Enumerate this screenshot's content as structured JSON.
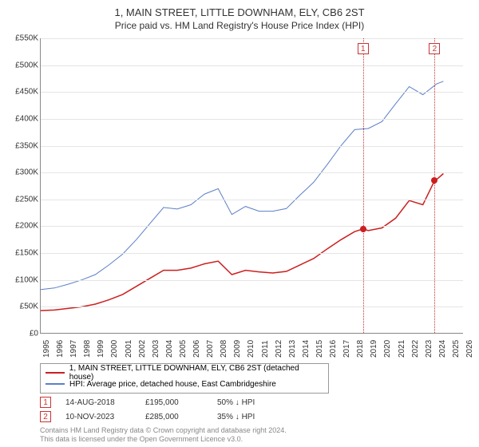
{
  "title": "1, MAIN STREET, LITTLE DOWNHAM, ELY, CB6 2ST",
  "subtitle": "Price paid vs. HM Land Registry's House Price Index (HPI)",
  "chart": {
    "type": "line",
    "ylim": [
      0,
      550
    ],
    "yticks": [
      0,
      50,
      100,
      150,
      200,
      250,
      300,
      350,
      400,
      450,
      500,
      550
    ],
    "ytick_labels": [
      "£0",
      "£50K",
      "£100K",
      "£150K",
      "£200K",
      "£250K",
      "£300K",
      "£350K",
      "£400K",
      "£450K",
      "£500K",
      "£550K"
    ],
    "x_years": [
      1995,
      1996,
      1997,
      1998,
      1999,
      2000,
      2001,
      2002,
      2003,
      2004,
      2005,
      2006,
      2007,
      2008,
      2009,
      2010,
      2011,
      2012,
      2013,
      2014,
      2015,
      2016,
      2017,
      2018,
      2019,
      2020,
      2021,
      2022,
      2023,
      2024,
      2025,
      2026
    ],
    "grid_color": "#e5e5e5",
    "background_color": "#ffffff",
    "series": [
      {
        "name": "1, MAIN STREET, LITTLE DOWNHAM, ELY, CB6 2ST (detached house)",
        "color": "#cc1f1f",
        "width": 1.5,
        "data": [
          [
            1995,
            43
          ],
          [
            1996,
            44
          ],
          [
            1997,
            47
          ],
          [
            1998,
            50
          ],
          [
            1999,
            55
          ],
          [
            2000,
            63
          ],
          [
            2001,
            73
          ],
          [
            2002,
            88
          ],
          [
            2003,
            103
          ],
          [
            2004,
            118
          ],
          [
            2005,
            118
          ],
          [
            2006,
            122
          ],
          [
            2007,
            130
          ],
          [
            2008,
            135
          ],
          [
            2009,
            110
          ],
          [
            2010,
            118
          ],
          [
            2011,
            115
          ],
          [
            2012,
            113
          ],
          [
            2013,
            116
          ],
          [
            2014,
            128
          ],
          [
            2015,
            140
          ],
          [
            2016,
            158
          ],
          [
            2017,
            175
          ],
          [
            2018,
            190
          ],
          [
            2018.62,
            195
          ],
          [
            2019,
            192
          ],
          [
            2020,
            197
          ],
          [
            2021,
            215
          ],
          [
            2022,
            248
          ],
          [
            2023,
            240
          ],
          [
            2023.86,
            285
          ],
          [
            2024,
            287
          ],
          [
            2024.5,
            298
          ]
        ]
      },
      {
        "name": "HPI: Average price, detached house, East Cambridgeshire",
        "color": "#5b7fc7",
        "width": 1,
        "data": [
          [
            1995,
            82
          ],
          [
            1996,
            85
          ],
          [
            1997,
            92
          ],
          [
            1998,
            100
          ],
          [
            1999,
            110
          ],
          [
            2000,
            128
          ],
          [
            2001,
            148
          ],
          [
            2002,
            175
          ],
          [
            2003,
            205
          ],
          [
            2004,
            235
          ],
          [
            2005,
            232
          ],
          [
            2006,
            240
          ],
          [
            2007,
            260
          ],
          [
            2008,
            270
          ],
          [
            2009,
            222
          ],
          [
            2010,
            237
          ],
          [
            2011,
            228
          ],
          [
            2012,
            228
          ],
          [
            2013,
            233
          ],
          [
            2014,
            258
          ],
          [
            2015,
            282
          ],
          [
            2016,
            315
          ],
          [
            2017,
            350
          ],
          [
            2018,
            380
          ],
          [
            2019,
            382
          ],
          [
            2020,
            395
          ],
          [
            2021,
            428
          ],
          [
            2022,
            460
          ],
          [
            2023,
            445
          ],
          [
            2024,
            465
          ],
          [
            2024.5,
            470
          ]
        ]
      }
    ],
    "markers": [
      {
        "label": "1",
        "year": 2018.62,
        "box_top": 6
      },
      {
        "label": "2",
        "year": 2023.86,
        "box_top": 6
      }
    ],
    "points": [
      {
        "year": 2018.62,
        "value": 195,
        "color": "#cc1f1f"
      },
      {
        "year": 2023.86,
        "value": 285,
        "color": "#cc1f1f"
      }
    ]
  },
  "legend": {
    "items": [
      {
        "color": "#cc1f1f",
        "label": "1, MAIN STREET, LITTLE DOWNHAM, ELY, CB6 2ST (detached house)"
      },
      {
        "color": "#5b7fc7",
        "label": "HPI: Average price, detached house, East Cambridgeshire"
      }
    ]
  },
  "rows": [
    {
      "num": "1",
      "date": "14-AUG-2018",
      "price": "£195,000",
      "pct": "50% ↓ HPI"
    },
    {
      "num": "2",
      "date": "10-NOV-2023",
      "price": "£285,000",
      "pct": "35% ↓ HPI"
    }
  ],
  "footer1": "Contains HM Land Registry data © Crown copyright and database right 2024.",
  "footer2": "This data is licensed under the Open Government Licence v3.0."
}
